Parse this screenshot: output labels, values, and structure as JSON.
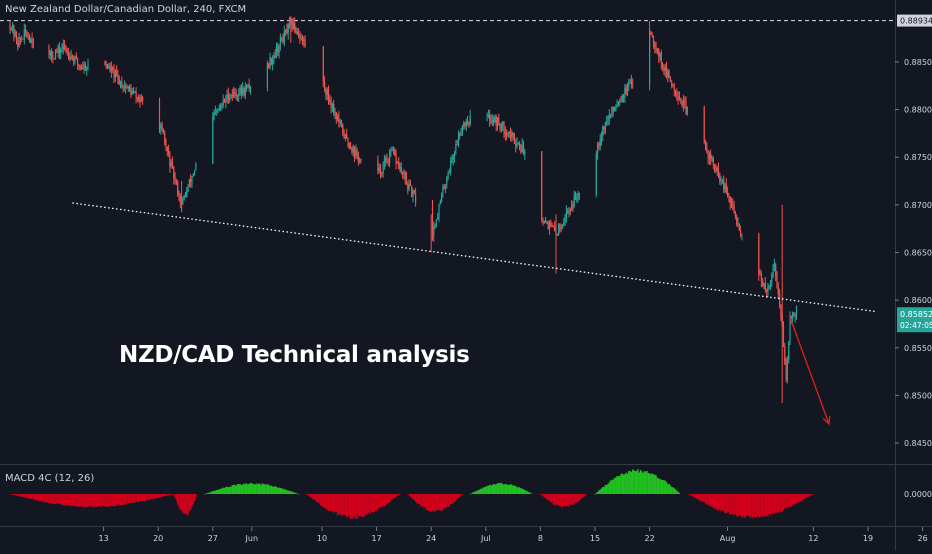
{
  "header": {
    "symbol_title": "New Zealand Dollar/Canadian Dollar, 240, FXCM",
    "macd_title": "MACD 4C (12, 26)"
  },
  "annotation": {
    "watermark": "NZD/CAD Technical analysis"
  },
  "colors": {
    "background": "#131722",
    "up": "#26a69a",
    "down": "#ef5350",
    "text": "#d1d4dc",
    "macd_up": "#22c122",
    "macd_down": "#d1001b",
    "arrow": "#e0211c",
    "trendline": "#ffffff"
  },
  "chart_data": [
    {
      "type": "candlestick",
      "symbol": "NZD/CAD",
      "interval": "240",
      "source": "FXCM",
      "y_axis_side": "right",
      "y_ticks": [
        "0.88500",
        "0.88000",
        "0.87500",
        "0.87000",
        "0.86500",
        "0.86000",
        "0.85500",
        "0.85000",
        "0.84500"
      ],
      "y_tick_values": [
        0.885,
        0.88,
        0.875,
        0.87,
        0.865,
        0.86,
        0.855,
        0.85,
        0.845
      ],
      "ylim": [
        0.8428,
        0.8915
      ],
      "x_ticks": [
        "13",
        "20",
        "27",
        "Jun",
        "10",
        "17",
        "24",
        "Jul",
        "8",
        "15",
        "22",
        "Aug",
        "12",
        "19",
        "26"
      ],
      "horizontal_level": {
        "value": 0.88934,
        "label": "0.88934",
        "style": "dashed"
      },
      "last_price": {
        "value": 0.85852,
        "label": "0.85852",
        "countdown": "02:47:05"
      },
      "trendline": {
        "style": "dotted",
        "from": {
          "x": "May 9",
          "y": 0.8702
        },
        "to": {
          "x": "Aug 20",
          "y": 0.8588
        }
      },
      "arrow": {
        "from": {
          "x": "Aug 9",
          "y": 0.8582
        },
        "to": {
          "x": "Aug 14",
          "y": 0.847
        }
      },
      "swing_path": [
        [
          "May 1",
          0.889
        ],
        [
          "May 2",
          0.887
        ],
        [
          "May 3",
          0.888
        ],
        [
          "May 6",
          0.8855
        ],
        [
          "May 8",
          0.8865
        ],
        [
          "May 10",
          0.8845
        ],
        [
          "May 13",
          0.885
        ],
        [
          "May 15",
          0.883
        ],
        [
          "May 17",
          0.8815
        ],
        [
          "May 20",
          0.879
        ],
        [
          "May 22",
          0.873
        ],
        [
          "May 23",
          0.87
        ],
        [
          "May 25",
          0.8745
        ],
        [
          "May 27",
          0.879
        ],
        [
          "May 29",
          0.8815
        ],
        [
          "May 31",
          0.882
        ],
        [
          "Jun 2",
          0.8832
        ],
        [
          "Jun 4",
          0.886
        ],
        [
          "Jun 6",
          0.889
        ],
        [
          "Jun 7",
          0.888
        ],
        [
          "Jun 9",
          0.885
        ],
        [
          "Jun 11",
          0.881
        ],
        [
          "Jun 13",
          0.877
        ],
        [
          "Jun 15",
          0.8745
        ],
        [
          "Jun 17",
          0.873
        ],
        [
          "Jun 19",
          0.8755
        ],
        [
          "Jun 21",
          0.872
        ],
        [
          "Jun 23",
          0.869
        ],
        [
          "Jun 24",
          0.8665
        ],
        [
          "Jun 26",
          0.873
        ],
        [
          "Jun 28",
          0.8785
        ],
        [
          "Jun 30",
          0.8795
        ],
        [
          "Jul 2",
          0.879
        ],
        [
          "Jul 4",
          0.8775
        ],
        [
          "Jul 6",
          0.8755
        ],
        [
          "Jul 8",
          0.869
        ],
        [
          "Jul 10",
          0.867
        ],
        [
          "Jul 12",
          0.87
        ],
        [
          "Jul 14",
          0.873
        ],
        [
          "Jul 16",
          0.878
        ],
        [
          "Jul 18",
          0.881
        ],
        [
          "Jul 20",
          0.883
        ],
        [
          "Jul 21",
          0.886
        ],
        [
          "Jul 22",
          0.8885
        ],
        [
          "Jul 24",
          0.884
        ],
        [
          "Jul 26",
          0.881
        ],
        [
          "Jul 28",
          0.878
        ],
        [
          "Jul 30",
          0.8745
        ],
        [
          "Aug 1",
          0.871
        ],
        [
          "Aug 3",
          0.8665
        ],
        [
          "Aug 5",
          0.863
        ],
        [
          "Aug 6",
          0.8605
        ],
        [
          "Aug 7",
          0.864
        ],
        [
          "Aug 8",
          0.857
        ],
        [
          "Aug 8.5",
          0.852
        ],
        [
          "Aug 9",
          0.858
        ],
        [
          "Aug 10",
          0.859
        ],
        [
          "Aug 11",
          0.8578
        ],
        [
          "Aug 12",
          0.8585
        ]
      ],
      "swing_extremes": [
        [
          "Jun 6",
          0.8898,
          0.887
        ],
        [
          "Jul 22",
          0.8893,
          0.886
        ],
        [
          "May 23",
          0.8725,
          0.8692
        ],
        [
          "Jun 24",
          0.869,
          0.865
        ],
        [
          "Jul 10",
          0.869,
          0.8628
        ],
        [
          "Aug 8",
          0.87,
          0.8492
        ]
      ]
    },
    {
      "type": "histogram",
      "name": "MACD 4C (12, 26)",
      "y_ticks": [
        "0.00000"
      ],
      "y_tick_values": [
        0
      ],
      "ylim": [
        -1,
        1
      ],
      "segments": [
        {
          "from": "May 1",
          "to": "May 22",
          "color": "down",
          "peak": -0.55
        },
        {
          "from": "May 22",
          "to": "May 25",
          "color": "down",
          "peak": -0.9
        },
        {
          "from": "May 26",
          "to": "Jun 7",
          "color": "up",
          "peak": 0.45
        },
        {
          "from": "Jun 8",
          "to": "Jun 20",
          "color": "down",
          "peak": -1.0
        },
        {
          "from": "Jun 21",
          "to": "Jun 28",
          "color": "down",
          "peak": -0.75
        },
        {
          "from": "Jun 29",
          "to": "Jul 7",
          "color": "up",
          "peak": 0.45
        },
        {
          "from": "Jul 8",
          "to": "Jul 14",
          "color": "down",
          "peak": -0.55
        },
        {
          "from": "Jul 15",
          "to": "Jul 26",
          "color": "up",
          "peak": 1.0
        },
        {
          "from": "Jul 27",
          "to": "Aug 12",
          "color": "down",
          "peak": -1.0
        }
      ]
    }
  ]
}
